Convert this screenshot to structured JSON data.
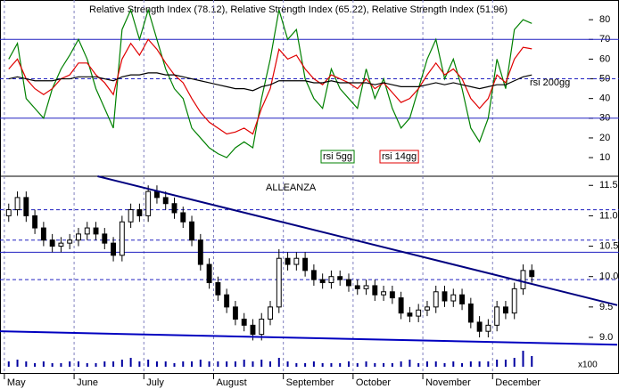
{
  "chart_data": [
    {
      "type": "line",
      "title": "Relative Strength Index (78.12), Relative Strength Index (65.22), Relative Strength Index (51.96)",
      "ylim": [
        1,
        90
      ],
      "yticks": [
        10,
        20,
        30,
        40,
        50,
        60,
        70,
        80
      ],
      "solid_levels": [
        70,
        30
      ],
      "dashed_levels": [
        50
      ],
      "series": [
        {
          "name": "rsi 5gg",
          "color": "#008000",
          "values": [
            60,
            68,
            40,
            35,
            30,
            45,
            55,
            62,
            70,
            60,
            45,
            35,
            25,
            75,
            85,
            70,
            85,
            70,
            55,
            45,
            40,
            25,
            20,
            15,
            12,
            10,
            15,
            18,
            15,
            40,
            60,
            85,
            70,
            75,
            50,
            40,
            35,
            55,
            45,
            40,
            35,
            55,
            40,
            50,
            35,
            25,
            30,
            45,
            60,
            70,
            50,
            60,
            45,
            25,
            18,
            30,
            60,
            45,
            75,
            80,
            78.12
          ]
        },
        {
          "name": "rsi 14gg",
          "color": "#e00000",
          "values": [
            55,
            60,
            50,
            45,
            42,
            45,
            50,
            52,
            58,
            58,
            52,
            48,
            42,
            60,
            68,
            62,
            70,
            65,
            58,
            52,
            48,
            40,
            33,
            28,
            25,
            22,
            23,
            25,
            22,
            35,
            45,
            65,
            60,
            62,
            55,
            50,
            47,
            52,
            50,
            48,
            45,
            50,
            45,
            48,
            43,
            38,
            40,
            45,
            52,
            58,
            52,
            55,
            50,
            40,
            35,
            40,
            52,
            48,
            60,
            66,
            65.22
          ]
        },
        {
          "name": "rsi 200gg",
          "color": "#000000",
          "values": [
            50,
            51,
            50,
            49,
            49,
            49,
            50,
            50,
            51,
            51,
            51,
            50,
            49,
            51,
            52,
            52,
            53,
            53,
            52,
            52,
            51,
            50,
            49,
            48,
            47,
            46,
            45,
            45,
            44,
            46,
            47,
            49,
            49,
            49,
            49,
            48,
            48,
            49,
            48,
            48,
            48,
            48,
            47,
            48,
            47,
            46,
            46,
            46,
            47,
            48,
            47,
            48,
            47,
            46,
            45,
            46,
            47,
            47,
            49,
            51,
            51.96
          ]
        }
      ]
    },
    {
      "type": "candlestick",
      "title": "ALLEANZA",
      "categories": [
        "May",
        null,
        null,
        null,
        null,
        null,
        null,
        null,
        "June",
        null,
        null,
        null,
        null,
        null,
        null,
        null,
        "July",
        null,
        null,
        null,
        null,
        null,
        null,
        null,
        "August",
        null,
        null,
        null,
        null,
        null,
        null,
        null,
        "September",
        null,
        null,
        null,
        null,
        null,
        null,
        null,
        "October",
        null,
        null,
        null,
        null,
        null,
        null,
        null,
        "November",
        null,
        null,
        null,
        null,
        null,
        null,
        null,
        "December",
        null,
        null,
        null,
        null
      ],
      "open": [
        11.0,
        11.1,
        11.3,
        11.0,
        10.8,
        10.6,
        10.5,
        10.55,
        10.6,
        10.7,
        10.8,
        10.7,
        10.55,
        10.35,
        10.9,
        11.1,
        11.0,
        11.4,
        11.3,
        11.2,
        11.05,
        10.9,
        10.6,
        10.2,
        9.9,
        9.7,
        9.5,
        9.3,
        9.2,
        9.05,
        9.3,
        9.5,
        10.3,
        10.2,
        10.3,
        10.1,
        9.95,
        9.9,
        10.0,
        9.95,
        9.85,
        9.8,
        9.85,
        9.7,
        9.75,
        9.65,
        9.4,
        9.35,
        9.45,
        9.5,
        9.75,
        9.6,
        9.7,
        9.55,
        9.25,
        9.1,
        9.2,
        9.5,
        9.4,
        9.8,
        10.1
      ],
      "high": [
        11.2,
        11.4,
        11.4,
        11.1,
        10.9,
        10.7,
        10.65,
        10.7,
        10.8,
        10.9,
        10.9,
        10.8,
        10.65,
        11.0,
        11.2,
        11.2,
        11.5,
        11.5,
        11.4,
        11.3,
        11.15,
        11.0,
        10.7,
        10.3,
        10.0,
        9.8,
        9.6,
        9.4,
        9.3,
        9.4,
        9.6,
        10.45,
        10.4,
        10.4,
        10.4,
        10.2,
        10.05,
        10.1,
        10.1,
        10.05,
        9.95,
        9.95,
        9.95,
        9.85,
        9.85,
        9.75,
        9.5,
        9.55,
        9.6,
        9.85,
        9.85,
        9.8,
        9.8,
        9.65,
        9.35,
        9.3,
        9.6,
        9.6,
        9.9,
        10.2,
        10.2
      ],
      "low": [
        10.9,
        11.0,
        10.9,
        10.7,
        10.5,
        10.4,
        10.4,
        10.45,
        10.5,
        10.6,
        10.6,
        10.45,
        10.25,
        10.25,
        10.8,
        10.9,
        10.9,
        11.2,
        11.1,
        10.95,
        10.8,
        10.5,
        10.1,
        9.8,
        9.6,
        9.4,
        9.2,
        9.1,
        8.95,
        8.95,
        9.2,
        9.4,
        10.1,
        10.1,
        10.0,
        9.85,
        9.8,
        9.8,
        9.85,
        9.75,
        9.7,
        9.7,
        9.6,
        9.6,
        9.55,
        9.3,
        9.25,
        9.25,
        9.35,
        9.4,
        9.5,
        9.5,
        9.45,
        9.15,
        9.0,
        9.0,
        9.1,
        9.3,
        9.3,
        9.7,
        9.9
      ],
      "close": [
        11.1,
        11.3,
        11.0,
        10.8,
        10.6,
        10.5,
        10.55,
        10.6,
        10.7,
        10.8,
        10.7,
        10.55,
        10.35,
        10.9,
        11.1,
        11.0,
        11.4,
        11.3,
        11.2,
        11.05,
        10.9,
        10.6,
        10.2,
        9.9,
        9.7,
        9.5,
        9.3,
        9.2,
        9.05,
        9.3,
        9.5,
        10.3,
        10.2,
        10.3,
        10.1,
        9.95,
        9.9,
        10.0,
        9.95,
        9.85,
        9.8,
        9.85,
        9.7,
        9.75,
        9.65,
        9.4,
        9.35,
        9.45,
        9.5,
        9.75,
        9.6,
        9.7,
        9.55,
        9.25,
        9.1,
        9.2,
        9.5,
        9.4,
        9.8,
        10.1,
        10.0
      ],
      "ylim": [
        8.4,
        11.65
      ],
      "yticks": [
        {
          "value": 9.0,
          "label": "9.0"
        },
        9.5,
        {
          "value": 10.0,
          "label": "10.0"
        },
        10.5,
        {
          "value": 11.0,
          "label": "11.0"
        },
        11.5
      ],
      "solid_levels": [
        10.4
      ],
      "dashed_levels": [
        11.1,
        10.6,
        9.95
      ],
      "trendlines": [
        {
          "color": "#000080",
          "x": [
            10.2,
            69.8
          ],
          "y": [
            11.65,
            9.53
          ]
        },
        {
          "color": "#0000c0",
          "x": [
            -1,
            69.8
          ],
          "y": [
            9.1,
            8.88
          ]
        }
      ],
      "volume_label": "x100",
      "vlim": [
        0,
        10
      ],
      "volume": [
        3,
        4,
        3,
        2,
        3,
        2,
        2,
        3,
        3,
        2,
        2,
        3,
        3,
        4,
        5,
        3,
        4,
        3,
        3,
        2,
        3,
        3,
        4,
        3,
        3,
        3,
        3,
        4,
        3,
        4,
        3,
        5,
        3,
        2,
        2,
        3,
        2,
        2,
        2,
        3,
        2,
        3,
        2,
        2,
        2,
        3,
        4,
        2,
        3,
        3,
        2,
        3,
        2,
        3,
        3,
        3,
        4,
        4,
        5,
        9,
        6
      ]
    }
  ]
}
